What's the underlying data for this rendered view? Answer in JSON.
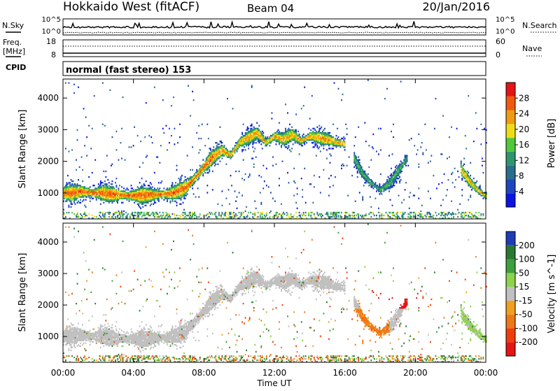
{
  "header": {
    "title": "Hokkaido West (fitACF)",
    "beam": "Beam 04",
    "date": "20/Jan/2016"
  },
  "strips": {
    "nsky": {
      "label": "N.Sky",
      "right_label": "N.Search",
      "top_tick": "10^5",
      "bottom_tick": "10^0",
      "right_top_tick": "10^5",
      "right_bottom_tick": "10^0"
    },
    "freq": {
      "label_line1": "Freq.",
      "label_line2": "[MHz]",
      "left_ticks": [
        "18",
        "8"
      ],
      "right_ticks": [
        "60",
        "0"
      ],
      "right_label": "Nave"
    },
    "cpid": {
      "label": "CPID",
      "text": "normal (fast stereo) 153"
    }
  },
  "chart_data": [
    {
      "type": "heatmap",
      "name": "power",
      "xlabel": "",
      "ylabel": "Slant Range [km]",
      "ylim": [
        180,
        4600
      ],
      "y_ticks": [
        1000,
        2000,
        3000,
        4000
      ],
      "colorbar": {
        "label": "Power [dB]",
        "range": [
          0,
          32
        ],
        "ticks": [
          4,
          8,
          12,
          16,
          20,
          24,
          28
        ],
        "colors": [
          "#0a14e6",
          "#1e46be",
          "#286e8c",
          "#2d966e",
          "#50c83c",
          "#f0dc14",
          "#f09b14",
          "#f05a0a",
          "#e61414"
        ]
      },
      "echo_bands": [
        {
          "t_hours": [
            0.0,
            0.5,
            1.0,
            2.0,
            3.0,
            4.0,
            5.0,
            6.0,
            6.5,
            7.0,
            7.5,
            8.0,
            8.5
          ],
          "range_km": [
            1000,
            1000,
            1050,
            1000,
            950,
            920,
            940,
            980,
            1050,
            1200,
            1500,
            1850,
            2150
          ],
          "halfwidth_km": 180,
          "peak_db": 26
        },
        {
          "t_hours": [
            8.5,
            9.0,
            9.5,
            10.0,
            10.5,
            11.0,
            11.5,
            12.0,
            12.5,
            13.0,
            13.5,
            14.0,
            14.5,
            15.0,
            15.5,
            16.0
          ],
          "range_km": [
            2150,
            2350,
            2200,
            2600,
            2750,
            2900,
            2600,
            2800,
            2700,
            2850,
            2650,
            2800,
            2750,
            2700,
            2600,
            2550
          ],
          "halfwidth_km": 150,
          "peak_db": 23
        },
        {
          "t_hours": [
            16.5,
            17.0,
            17.5,
            18.0,
            18.5,
            19.0,
            19.5
          ],
          "range_km": [
            2100,
            1600,
            1300,
            1100,
            1300,
            1700,
            2100
          ],
          "halfwidth_km": 120,
          "peak_db": 14
        },
        {
          "t_hours": [
            22.5,
            23.0,
            23.5,
            24.0
          ],
          "range_km": [
            1800,
            1400,
            1100,
            900
          ],
          "halfwidth_km": 120,
          "peak_db": 22
        }
      ]
    },
    {
      "type": "heatmap",
      "name": "velocity",
      "xlabel": "Time UT",
      "ylabel": "Slant Range [km]",
      "ylim": [
        180,
        4600
      ],
      "y_ticks": [
        1000,
        2000,
        3000,
        4000
      ],
      "x_ticks": [
        "00:00",
        "04:00",
        "08:00",
        "12:00",
        "16:00",
        "20:00",
        "00:00"
      ],
      "colorbar": {
        "label": "Velocity [m s^-1]",
        "ticks": [
          200,
          100,
          50,
          15,
          -15,
          -50,
          -100,
          -200
        ],
        "colors": [
          "#1e3cb4",
          "#287832",
          "#3ca03c",
          "#8cd24b",
          "#c0c0c0",
          "#f0a01e",
          "#f07814",
          "#f03c0a",
          "#e61414"
        ]
      },
      "patches": [
        {
          "t_hours": [
            17.5,
            20.5
          ],
          "range_km": [
            1900,
            2500
          ],
          "velocity": -250
        },
        {
          "t_hours": [
            16.0,
            18.5
          ],
          "range_km": [
            700,
            1900
          ],
          "velocity": -60
        },
        {
          "t_hours": [
            0.0,
            8.5
          ],
          "range_km": [
            700,
            1800
          ],
          "velocity": 0
        },
        {
          "t_hours": [
            8.5,
            16.0
          ],
          "range_km": [
            2100,
            3100
          ],
          "velocity": 0
        },
        {
          "t_hours": [
            22.5,
            24.0
          ],
          "range_km": [
            700,
            2200
          ],
          "velocity": 20
        }
      ]
    }
  ]
}
